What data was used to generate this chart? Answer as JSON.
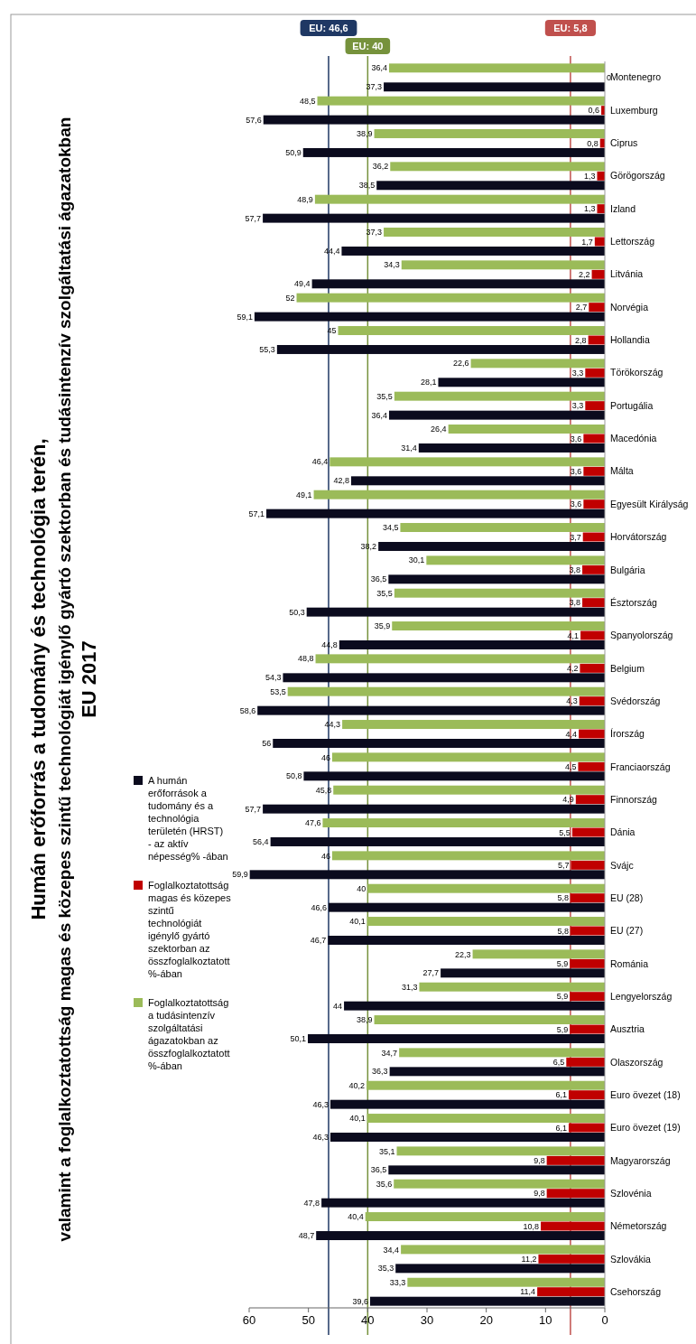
{
  "chart_data": {
    "type": "bar",
    "orientation": "horizontal",
    "title": "Humán erőforrás a tudomány és technológia terén,\nvalamint a foglalkoztatottság magas és közepes szintű technológiát igénylő  gyártó szektorban és tudásintenzív szolgáltatási ágazatokban\nEU 2017",
    "categories": [
      "Montenegro",
      "Luxemburg",
      "Ciprus",
      "Görögország",
      "Izland",
      "Lettország",
      "Litvánia",
      "Norvégia",
      "Hollandia",
      "Törökország",
      "Portugália",
      "Macedónia",
      "Málta",
      "Egyesült Királyság",
      "Horvátország",
      "Bulgária",
      "Észtország",
      "Spanyolország",
      "Belgium",
      "Svédország",
      "Írország",
      "Franciaország",
      "Finnország",
      "Dánia",
      "Svájc",
      "EU (28)",
      "EU (27)",
      "Románia",
      "Lengyelország",
      "Ausztria",
      "Olaszország",
      "Euro övezet (18)",
      "Euro övezet (19)",
      "Magyarország",
      "Szlovénia",
      "Németország",
      "Szlovákia",
      "Csehország"
    ],
    "series": [
      {
        "name": "A humán erőforrások a tudomány és a technológia területén (HRST) - az aktív népesség% -ában",
        "color": "#0b0b1e",
        "values": [
          37.3,
          57.6,
          50.9,
          38.5,
          57.7,
          44.4,
          49.4,
          59.1,
          55.3,
          28.1,
          36.4,
          31.4,
          42.8,
          57.1,
          38.2,
          36.5,
          50.3,
          44.8,
          54.3,
          58.6,
          56,
          50.8,
          57.7,
          56.4,
          59.9,
          46.6,
          46.7,
          27.7,
          44,
          50.1,
          36.3,
          46.3,
          46.3,
          36.5,
          47.8,
          48.7,
          35.3,
          39.6
        ],
        "value_labels": [
          "37,3",
          "57,6",
          "50,9",
          "38,5",
          "57,7",
          "44,4",
          "49,4",
          "59,1",
          "55,3",
          "28,1",
          "36,4",
          "31,4",
          "42,8",
          "57,1",
          "38,2",
          "36,5",
          "50,3",
          "44,8",
          "54,3",
          "58,6",
          "56",
          "50,8",
          "57,7",
          "56,4",
          "59,9",
          "46,6",
          "46,7",
          "27,7",
          "44",
          "50,1",
          "36,3",
          "46,3",
          "46,3",
          "36,5",
          "47,8",
          "48,7",
          "35,3",
          "39,6"
        ]
      },
      {
        "name": "Foglalkoztatottság magas és közepes szintű technológiát igénylő  gyártó szektorban az összfoglalkoztatott %-ában",
        "color": "#c00000",
        "values": [
          0,
          0.6,
          0.8,
          1.3,
          1.3,
          1.7,
          2.2,
          2.7,
          2.8,
          3.3,
          3.3,
          3.6,
          3.6,
          3.6,
          3.7,
          3.8,
          3.8,
          4.1,
          4.2,
          4.3,
          4.4,
          4.5,
          4.9,
          5.5,
          5.7,
          5.8,
          5.8,
          5.9,
          5.9,
          5.9,
          6.5,
          6.1,
          6.1,
          9.8,
          9.8,
          10.8,
          11.2,
          11.4
        ],
        "value_labels": [
          "0",
          "0,6",
          "0,8",
          "1,3",
          "1,3",
          "1,7",
          "2,2",
          "2,7",
          "2,8",
          "3,3",
          "3,3",
          "3,6",
          "3,6",
          "3,6",
          "3,7",
          "3,8",
          "3,8",
          "4,1",
          "4,2",
          "4,3",
          "4,4",
          "4,5",
          "4,9",
          "5,5",
          "5,7",
          "5,8",
          "5,8",
          "5,9",
          "5,9",
          "5,9",
          "6,5",
          "6,1",
          "6,1",
          "9,8",
          "9,8",
          "10,8",
          "11,2",
          "11,4"
        ]
      },
      {
        "name": "Foglalkoztatottság a  tudásintenzív szolgáltatási ágazatokban az összfoglalkoztatott %-ában",
        "color": "#9bbb59",
        "values": [
          36.4,
          48.5,
          38.9,
          36.2,
          48.9,
          37.3,
          34.3,
          52,
          45,
          22.6,
          35.5,
          26.4,
          46.4,
          49.1,
          34.5,
          30.1,
          35.5,
          35.9,
          48.8,
          53.5,
          44.3,
          46,
          45.8,
          47.6,
          46,
          40,
          40.1,
          22.3,
          31.3,
          38.9,
          34.7,
          40.2,
          40.1,
          35.1,
          35.6,
          40.4,
          34.4,
          33.3
        ],
        "value_labels": [
          "36,4",
          "48,5",
          "38,9",
          "36,2",
          "48,9",
          "37,3",
          "34,3",
          "52",
          "45",
          "22,6",
          "35,5",
          "26,4",
          "46,4",
          "49,1",
          "34,5",
          "30,1",
          "35,5",
          "35,9",
          "48,8",
          "53,5",
          "44,3",
          "46",
          "45,8",
          "47,6",
          "46",
          "40",
          "40,1",
          "22,3",
          "31,3",
          "38,9",
          "34,7",
          "40,2",
          "40,1",
          "35,1",
          "35,6",
          "40,4",
          "34,4",
          "33,3"
        ]
      }
    ],
    "xlim": [
      60,
      0
    ],
    "xticks": [
      0,
      10,
      20,
      30,
      40,
      50,
      60
    ],
    "legend": "left",
    "ref_lines": [
      {
        "axis": "x",
        "value": 46.6,
        "label": "EU: 46,6",
        "color": "#1f3864"
      },
      {
        "axis": "x",
        "value": 40,
        "label": "EU: 40",
        "color": "#76923c"
      },
      {
        "axis": "x",
        "value": 5.8,
        "label": "EU: 5,8",
        "color": "#c0504d"
      }
    ]
  }
}
